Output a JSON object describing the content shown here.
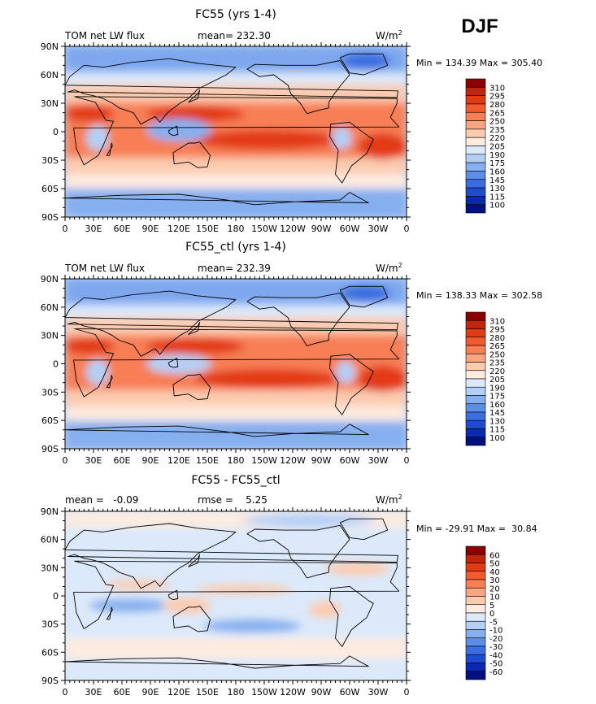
{
  "season": "DJF",
  "chart_data": [
    {
      "type": "heatmap",
      "title": "FC55 (yrs 1-4)",
      "subtitle_left": "TOM net LW flux",
      "mean_text": "mean= 232.30",
      "units_text": "W/m",
      "units_sup": "2",
      "minmax_text": "Min = 134.39 Max = 305.40",
      "min": 134.39,
      "max": 305.4,
      "xticks": [
        "0",
        "30E",
        "60E",
        "90E",
        "120E",
        "150E",
        "180",
        "150W",
        "120W",
        "90W",
        "60W",
        "30W",
        "0"
      ],
      "yticks": [
        "90N",
        "60N",
        "30N",
        "0",
        "30S",
        "60S",
        "90S"
      ],
      "colorbar_labels": [
        "310",
        "295",
        "280",
        "265",
        "250",
        "235",
        "220",
        "205",
        "190",
        "175",
        "160",
        "145",
        "130",
        "115",
        "100"
      ],
      "colorbar_colors": [
        "#8b0000",
        "#c0260d",
        "#e23b13",
        "#f35a2e",
        "#f77e55",
        "#f9a582",
        "#fbcbb0",
        "#fdebe0",
        "#dce9fa",
        "#b4cff5",
        "#86afef",
        "#5c8ee8",
        "#3b6de0",
        "#1f4bd0",
        "#0a2ab3",
        "#001080"
      ]
    },
    {
      "type": "heatmap",
      "title": "FC55_ctl (yrs 1-4)",
      "subtitle_left": "TOM net LW flux",
      "mean_text": "mean= 232.39",
      "units_text": "W/m",
      "units_sup": "2",
      "minmax_text": "Min = 138.33 Max = 302.58",
      "min": 138.33,
      "max": 302.58,
      "xticks": [
        "0",
        "30E",
        "60E",
        "90E",
        "120E",
        "150E",
        "180",
        "150W",
        "120W",
        "90W",
        "60W",
        "30W",
        "0"
      ],
      "yticks": [
        "90N",
        "60N",
        "30N",
        "0",
        "30S",
        "60S",
        "90S"
      ],
      "colorbar_labels": [
        "310",
        "295",
        "280",
        "265",
        "250",
        "235",
        "220",
        "205",
        "190",
        "175",
        "160",
        "145",
        "130",
        "115",
        "100"
      ],
      "colorbar_colors": [
        "#8b0000",
        "#c0260d",
        "#e23b13",
        "#f35a2e",
        "#f77e55",
        "#f9a582",
        "#fbcbb0",
        "#fdebe0",
        "#dce9fa",
        "#b4cff5",
        "#86afef",
        "#5c8ee8",
        "#3b6de0",
        "#1f4bd0",
        "#0a2ab3",
        "#001080"
      ]
    },
    {
      "type": "heatmap",
      "title": "FC55 - FC55_ctl",
      "subtitle_left": "mean =   -0.09",
      "mean_text": "rmse =    5.25",
      "units_text": "W/m",
      "units_sup": "2",
      "minmax_text": "Min = -29.91 Max =  30.84",
      "min": -29.91,
      "max": 30.84,
      "xticks": [
        "0",
        "30E",
        "60E",
        "90E",
        "120E",
        "150E",
        "180",
        "150W",
        "120W",
        "90W",
        "60W",
        "30W",
        "0"
      ],
      "yticks": [
        "90N",
        "60N",
        "30N",
        "0",
        "30S",
        "60S",
        "90S"
      ],
      "colorbar_labels": [
        "60",
        "50",
        "40",
        "30",
        "20",
        "10",
        "5",
        "0",
        "-5",
        "-10",
        "-20",
        "-30",
        "-40",
        "-50",
        "-60"
      ],
      "colorbar_colors": [
        "#8b0000",
        "#c0260d",
        "#e23b13",
        "#f35a2e",
        "#f77e55",
        "#f9a582",
        "#fbcbb0",
        "#fdebe0",
        "#dce9fa",
        "#b4cff5",
        "#86afef",
        "#5c8ee8",
        "#3b6de0",
        "#1f4bd0",
        "#0a2ab3",
        "#001080"
      ]
    }
  ]
}
